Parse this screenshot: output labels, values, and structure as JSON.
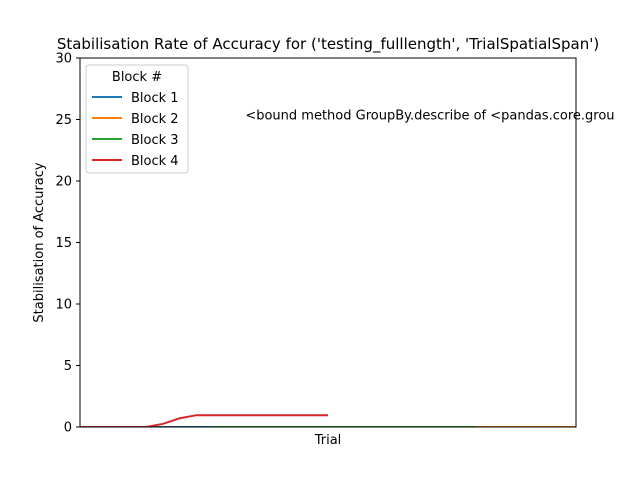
{
  "chart_data": {
    "type": "line",
    "title": "Stabilisation Rate of Accuracy for ('testing_fulllength', 'TrialSpatialSpan')",
    "xlabel": "Trial",
    "ylabel": "Stabilisation of Accuracy",
    "ylim": [
      0,
      30
    ],
    "yticks": [
      0,
      5,
      10,
      15,
      20,
      25,
      30
    ],
    "xlim": [
      0,
      30
    ],
    "grid": false,
    "legend": {
      "title": "Block #",
      "position": "top-left"
    },
    "annotation": {
      "text": "<bound method GroupBy.describe of <pandas.core.grou",
      "x": 10,
      "y": 25
    },
    "series": [
      {
        "name": "Block 1",
        "color": "#1f77b4",
        "x": [
          0,
          2,
          4,
          6,
          8
        ],
        "y": [
          0,
          0,
          0,
          0,
          0
        ]
      },
      {
        "name": "Block 2",
        "color": "#ff7f0e",
        "x": [
          24,
          26,
          28,
          30
        ],
        "y": [
          0,
          0,
          0,
          0
        ]
      },
      {
        "name": "Block 3",
        "color": "#2ca02c",
        "x": [
          8,
          12,
          16,
          20,
          24
        ],
        "y": [
          0,
          0,
          0,
          0,
          0
        ]
      },
      {
        "name": "Block 4",
        "color": "#d62728",
        "x": [
          0,
          1,
          2,
          3,
          4,
          5,
          6,
          7,
          8,
          9,
          10,
          11,
          12,
          13,
          14,
          15
        ],
        "y": [
          0,
          0,
          0,
          0,
          0,
          0.25,
          0.7,
          0.95,
          0.95,
          0.95,
          0.95,
          0.95,
          0.95,
          0.95,
          0.95,
          0.95
        ]
      }
    ]
  }
}
